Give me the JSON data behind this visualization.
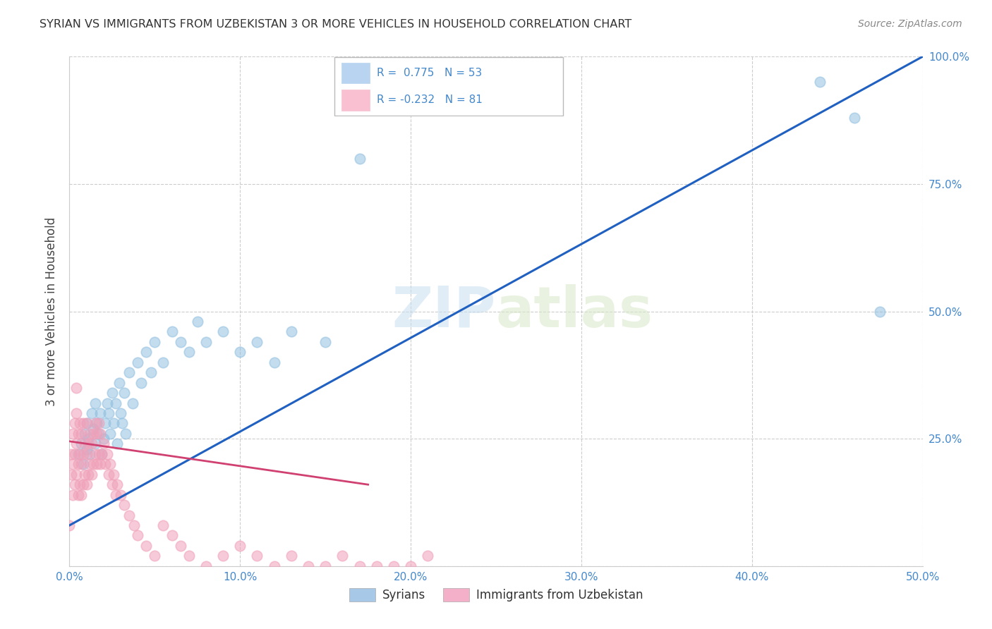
{
  "title": "SYRIAN VS IMMIGRANTS FROM UZBEKISTAN 3 OR MORE VEHICLES IN HOUSEHOLD CORRELATION CHART",
  "source": "Source: ZipAtlas.com",
  "ylabel": "3 or more Vehicles in Household",
  "xlim": [
    0,
    0.5
  ],
  "ylim": [
    0,
    1.0
  ],
  "xticks": [
    0.0,
    0.1,
    0.2,
    0.3,
    0.4,
    0.5
  ],
  "xticklabels": [
    "0.0%",
    "10.0%",
    "20.0%",
    "30.0%",
    "40.0%",
    "50.0%"
  ],
  "yticks": [
    0.25,
    0.5,
    0.75,
    1.0
  ],
  "yticklabels": [
    "25.0%",
    "50.0%",
    "75.0%",
    "100.0%"
  ],
  "syrians_color": "#92c0e0",
  "uzbekistan_color": "#f0a0b8",
  "blue_line_color": "#2060c0",
  "pink_line_color": "#d04070",
  "watermark_text": "ZIPatlas",
  "legend_label_blue": "R =  0.775   N = 53",
  "legend_label_pink": "R = -0.232   N = 81",
  "legend_box_blue": "#b8d4f0",
  "legend_box_pink": "#f8c0d0",
  "bottom_legend_blue": "#a8c8e8",
  "bottom_legend_pink": "#f4b0c8",
  "tick_color": "#4488cc",
  "grid_color": "#cccccc",
  "blue_trend": [
    0.0,
    1.64,
    0.0,
    0.5
  ],
  "pink_trend": [
    0.0,
    0.245,
    0.0,
    0.175
  ],
  "blue_scatter_x": [
    0.005,
    0.007,
    0.008,
    0.009,
    0.01,
    0.01,
    0.011,
    0.012,
    0.013,
    0.014,
    0.015,
    0.015,
    0.016,
    0.017,
    0.018,
    0.019,
    0.02,
    0.021,
    0.022,
    0.023,
    0.024,
    0.025,
    0.026,
    0.027,
    0.028,
    0.029,
    0.03,
    0.031,
    0.032,
    0.033,
    0.035,
    0.037,
    0.04,
    0.042,
    0.045,
    0.048,
    0.05,
    0.055,
    0.06,
    0.065,
    0.07,
    0.075,
    0.08,
    0.09,
    0.1,
    0.11,
    0.12,
    0.13,
    0.15,
    0.17,
    0.44,
    0.46,
    0.475
  ],
  "blue_scatter_y": [
    0.22,
    0.24,
    0.2,
    0.26,
    0.28,
    0.23,
    0.25,
    0.22,
    0.3,
    0.27,
    0.24,
    0.32,
    0.28,
    0.26,
    0.3,
    0.22,
    0.25,
    0.28,
    0.32,
    0.3,
    0.26,
    0.34,
    0.28,
    0.32,
    0.24,
    0.36,
    0.3,
    0.28,
    0.34,
    0.26,
    0.38,
    0.32,
    0.4,
    0.36,
    0.42,
    0.38,
    0.44,
    0.4,
    0.46,
    0.44,
    0.42,
    0.48,
    0.44,
    0.46,
    0.42,
    0.44,
    0.4,
    0.46,
    0.44,
    0.8,
    0.95,
    0.88,
    0.5
  ],
  "pink_scatter_x": [
    0.0,
    0.001,
    0.001,
    0.002,
    0.002,
    0.002,
    0.003,
    0.003,
    0.003,
    0.004,
    0.004,
    0.004,
    0.004,
    0.005,
    0.005,
    0.005,
    0.006,
    0.006,
    0.006,
    0.007,
    0.007,
    0.007,
    0.008,
    0.008,
    0.008,
    0.009,
    0.009,
    0.01,
    0.01,
    0.01,
    0.011,
    0.011,
    0.012,
    0.012,
    0.013,
    0.013,
    0.014,
    0.014,
    0.015,
    0.015,
    0.016,
    0.016,
    0.017,
    0.017,
    0.018,
    0.018,
    0.019,
    0.02,
    0.021,
    0.022,
    0.023,
    0.024,
    0.025,
    0.026,
    0.027,
    0.028,
    0.03,
    0.032,
    0.035,
    0.038,
    0.04,
    0.045,
    0.05,
    0.055,
    0.06,
    0.065,
    0.07,
    0.08,
    0.09,
    0.1,
    0.11,
    0.12,
    0.13,
    0.14,
    0.15,
    0.16,
    0.17,
    0.18,
    0.19,
    0.2,
    0.21
  ],
  "pink_scatter_y": [
    0.08,
    0.18,
    0.22,
    0.14,
    0.2,
    0.26,
    0.16,
    0.22,
    0.28,
    0.18,
    0.24,
    0.3,
    0.35,
    0.14,
    0.2,
    0.26,
    0.16,
    0.22,
    0.28,
    0.14,
    0.2,
    0.26,
    0.16,
    0.22,
    0.28,
    0.18,
    0.24,
    0.16,
    0.22,
    0.28,
    0.18,
    0.24,
    0.2,
    0.26,
    0.18,
    0.24,
    0.2,
    0.26,
    0.22,
    0.28,
    0.2,
    0.26,
    0.22,
    0.28,
    0.2,
    0.26,
    0.22,
    0.24,
    0.2,
    0.22,
    0.18,
    0.2,
    0.16,
    0.18,
    0.14,
    0.16,
    0.14,
    0.12,
    0.1,
    0.08,
    0.06,
    0.04,
    0.02,
    0.08,
    0.06,
    0.04,
    0.02,
    0.0,
    0.02,
    0.04,
    0.02,
    0.0,
    0.02,
    0.0,
    0.0,
    0.02,
    0.0,
    0.0,
    0.0,
    0.0,
    0.02
  ]
}
